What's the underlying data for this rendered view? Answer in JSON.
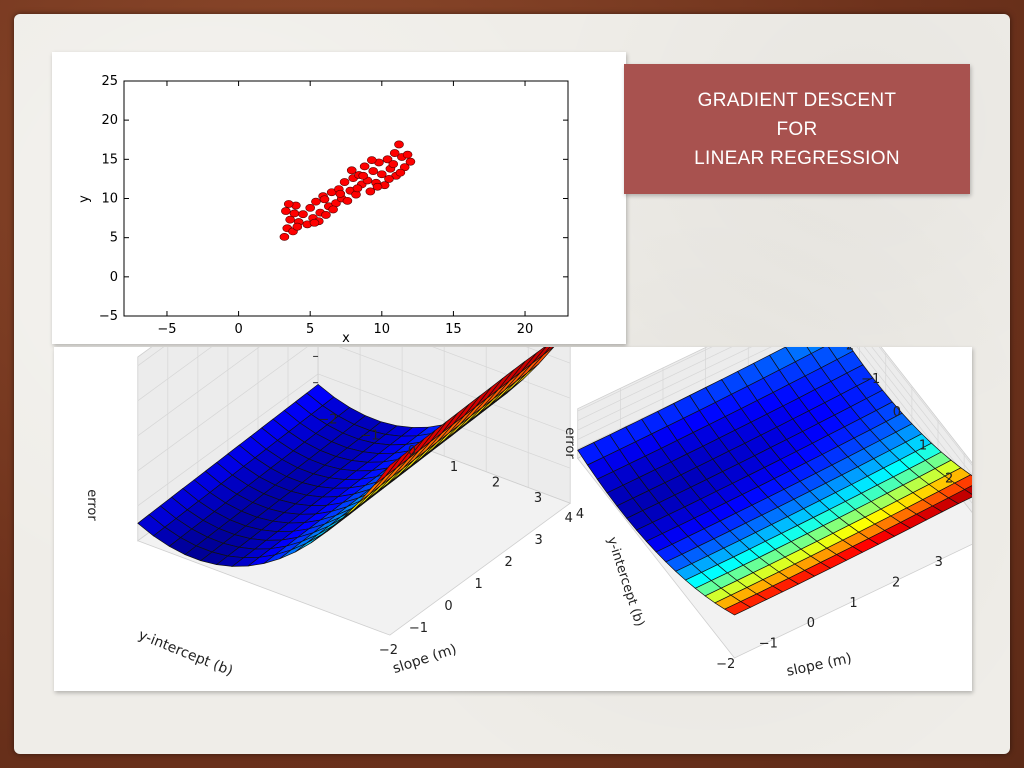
{
  "slide": {
    "title_lines": [
      "GRADIENT DESCENT",
      "FOR",
      "LINEAR REGRESSION"
    ],
    "accent_color": "#a8524f"
  },
  "chart_data": [
    {
      "type": "scatter",
      "xlabel": "x",
      "ylabel": "y",
      "xlim": [
        -8,
        23
      ],
      "ylim": [
        -5,
        25
      ],
      "xticks": [
        "−5",
        "0",
        "5",
        "10",
        "15",
        "20"
      ],
      "yticks": [
        "−5",
        "0",
        "5",
        "10",
        "15",
        "20",
        "25"
      ],
      "marker_color": "#ff0000",
      "points": [
        [
          3.2,
          5.1
        ],
        [
          3.4,
          6.2
        ],
        [
          3.6,
          7.3
        ],
        [
          3.3,
          8.4
        ],
        [
          3.8,
          5.8
        ],
        [
          4.0,
          9.1
        ],
        [
          4.2,
          7.0
        ],
        [
          3.5,
          9.3
        ],
        [
          4.5,
          8.0
        ],
        [
          4.8,
          6.7
        ],
        [
          5.0,
          8.8
        ],
        [
          5.2,
          7.5
        ],
        [
          5.4,
          9.6
        ],
        [
          5.7,
          8.2
        ],
        [
          5.9,
          10.3
        ],
        [
          6.1,
          7.9
        ],
        [
          6.3,
          9.0
        ],
        [
          6.5,
          10.8
        ],
        [
          6.8,
          9.4
        ],
        [
          7.0,
          11.2
        ],
        [
          7.2,
          10.0
        ],
        [
          7.4,
          12.1
        ],
        [
          7.6,
          9.7
        ],
        [
          7.8,
          11.0
        ],
        [
          8.0,
          12.6
        ],
        [
          8.2,
          10.5
        ],
        [
          8.4,
          13.0
        ],
        [
          8.6,
          11.8
        ],
        [
          8.8,
          14.1
        ],
        [
          9.0,
          12.3
        ],
        [
          9.2,
          10.9
        ],
        [
          9.4,
          13.5
        ],
        [
          9.6,
          12.0
        ],
        [
          9.8,
          14.6
        ],
        [
          10.0,
          13.1
        ],
        [
          10.2,
          11.7
        ],
        [
          10.4,
          15.0
        ],
        [
          10.6,
          13.8
        ],
        [
          10.8,
          14.4
        ],
        [
          11.0,
          12.9
        ],
        [
          11.2,
          16.9
        ],
        [
          11.4,
          15.3
        ],
        [
          11.6,
          14.0
        ],
        [
          11.8,
          15.6
        ],
        [
          12.0,
          14.7
        ],
        [
          4.1,
          6.4
        ],
        [
          5.6,
          7.1
        ],
        [
          6.6,
          8.6
        ],
        [
          7.1,
          10.6
        ],
        [
          8.3,
          11.3
        ],
        [
          9.3,
          14.9
        ],
        [
          10.5,
          12.5
        ],
        [
          3.9,
          8.1
        ],
        [
          6.0,
          9.9
        ],
        [
          7.9,
          13.6
        ],
        [
          9.7,
          11.5
        ],
        [
          11.3,
          13.3
        ],
        [
          5.3,
          6.9
        ],
        [
          8.7,
          12.9
        ],
        [
          10.9,
          15.8
        ]
      ]
    },
    {
      "type": "surface",
      "zlabel": "error",
      "xlabel": "y-intercept (b)",
      "ylabel": "slope (m)",
      "b_ticks": [
        "−2",
        "−1",
        "0",
        "1",
        "2",
        "3",
        "4"
      ],
      "m_ticks": [
        "4",
        "3",
        "2",
        "1",
        "0",
        "−1",
        "−2"
      ]
    },
    {
      "type": "surface",
      "zlabel": "error",
      "xlabel": "y-intercept (b)",
      "ylabel": "slope (m)",
      "b_ticks": [
        "−2",
        "−1",
        "0",
        "1",
        "2",
        "3",
        "4"
      ],
      "m_ticks": [
        "4",
        "3",
        "2",
        "1",
        "0",
        "−1",
        "−2"
      ]
    }
  ]
}
